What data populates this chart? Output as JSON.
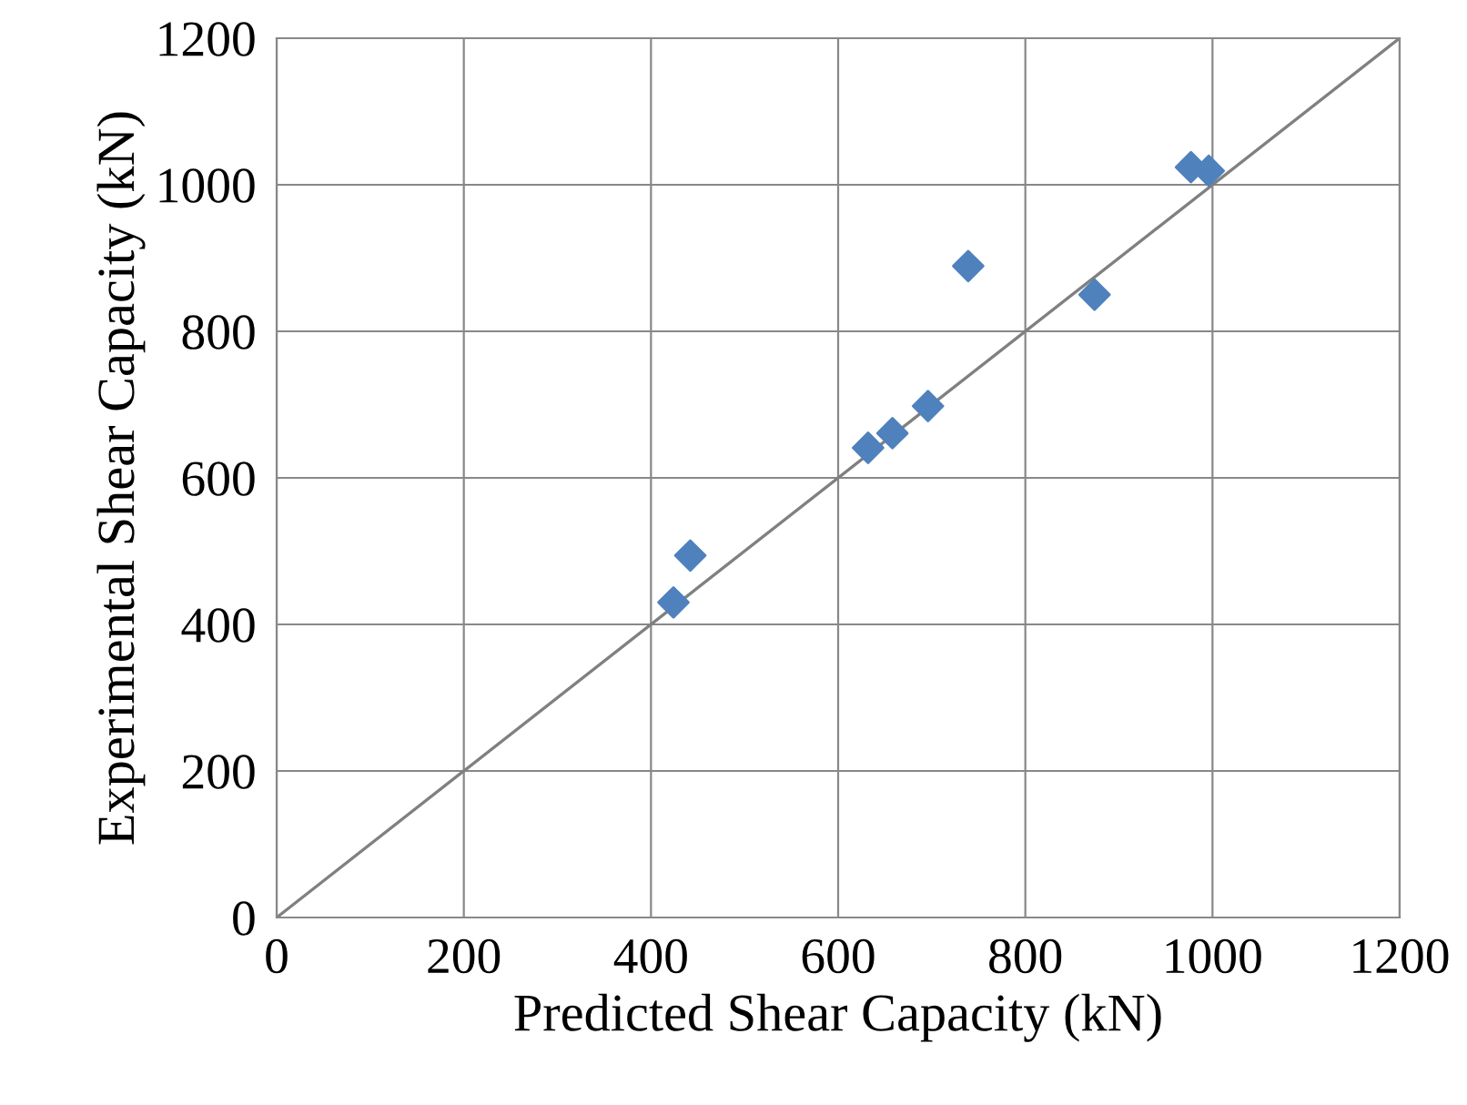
{
  "chart_data": {
    "type": "scatter",
    "xlabel": "Predicted Shear Capacity (kN)",
    "ylabel": "Experimental Shear Capacity (kN)",
    "xlim": [
      0,
      1200
    ],
    "ylim": [
      0,
      1200
    ],
    "xticks": [
      0,
      200,
      400,
      600,
      800,
      1000,
      1200
    ],
    "yticks": [
      0,
      200,
      400,
      600,
      800,
      1000,
      1200
    ],
    "grid": true,
    "legend": false,
    "series": [
      {
        "color": "#4f81bd",
        "marker": "diamond",
        "x": [
          424,
          442,
          632,
          658,
          696,
          739,
          874,
          977,
          996
        ],
        "values": [
          430,
          494,
          641,
          661,
          698,
          889,
          850,
          1024,
          1019
        ]
      },
      {
        "type": "line",
        "color": "#808080",
        "marker": "none",
        "line_style": "solid",
        "x": [
          0,
          1200
        ],
        "values": [
          0,
          1200
        ]
      }
    ]
  }
}
